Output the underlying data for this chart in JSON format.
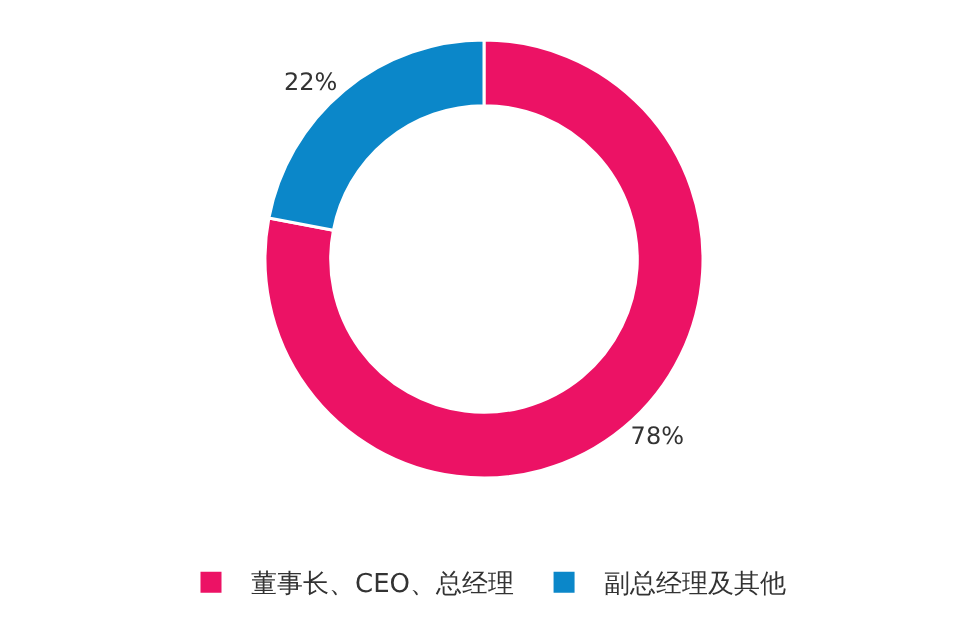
{
  "chart_data": {
    "type": "donut",
    "categories": [
      "董事长、CEO、总经理",
      "副总经理及其他"
    ],
    "values": [
      78,
      22
    ],
    "colors": [
      "#ec1265",
      "#0b87c9"
    ],
    "value_labels": [
      "78%",
      "22%"
    ],
    "legend": "bottom"
  }
}
